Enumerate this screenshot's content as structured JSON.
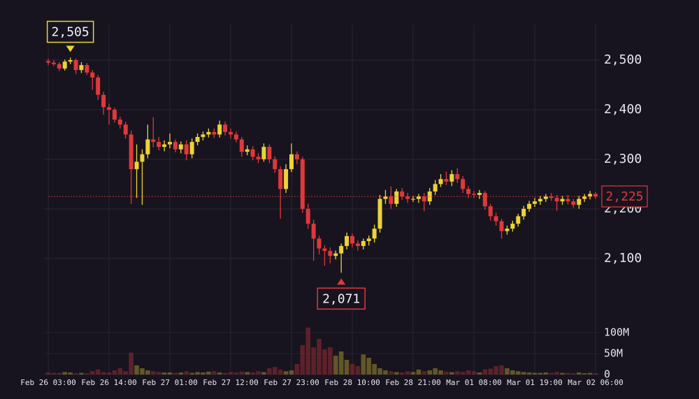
{
  "chart_data": {
    "type": "candlestick",
    "categories": [
      "Feb 26 03:00",
      null,
      null,
      null,
      null,
      null,
      null,
      null,
      null,
      null,
      null,
      "Feb 26 14:00",
      null,
      null,
      null,
      null,
      null,
      null,
      null,
      null,
      null,
      null,
      "Feb 27 01:00",
      null,
      null,
      null,
      null,
      null,
      null,
      null,
      null,
      null,
      null,
      "Feb 27 12:00",
      null,
      null,
      null,
      null,
      null,
      null,
      null,
      null,
      null,
      null,
      "Feb 27 23:00",
      null,
      null,
      null,
      null,
      null,
      null,
      null,
      null,
      null,
      null,
      "Feb 28 10:00",
      null,
      null,
      null,
      null,
      null,
      null,
      null,
      null,
      null,
      null,
      "Feb 28 21:00",
      null,
      null,
      null,
      null,
      null,
      null,
      null,
      null,
      null,
      null,
      "Mar 01 08:00",
      null,
      null,
      null,
      null,
      null,
      null,
      null,
      null,
      null,
      null,
      "Mar 01 19:00",
      null,
      null,
      null,
      null,
      null,
      null,
      null,
      null,
      null,
      null,
      "Mar 02 06:00"
    ],
    "open": [
      2498,
      2495,
      2492,
      2483,
      2497,
      2500,
      2480,
      2490,
      2475,
      2465,
      2430,
      2405,
      2400,
      2380,
      2370,
      2350,
      2280,
      2295,
      2310,
      2340,
      2335,
      2325,
      2330,
      2335,
      2320,
      2330,
      2310,
      2335,
      2345,
      2350,
      2355,
      2350,
      2370,
      2355,
      2350,
      2340,
      2315,
      2320,
      2305,
      2300,
      2325,
      2300,
      2280,
      2240,
      2280,
      2310,
      2300,
      2200,
      2170,
      2140,
      2120,
      2115,
      2105,
      2110,
      2125,
      2145,
      2130,
      2125,
      2135,
      2140,
      2160,
      2220,
      2225,
      2210,
      2235,
      2225,
      2220,
      2220,
      2225,
      2215,
      2235,
      2250,
      2260,
      2255,
      2270,
      2260,
      2240,
      2230,
      2228,
      2232,
      2205,
      2185,
      2175,
      2155,
      2160,
      2170,
      2185,
      2200,
      2210,
      2215,
      2220,
      2225,
      2222,
      2215,
      2220,
      2215,
      2208,
      2220,
      2225,
      2230
    ],
    "high": [
      2503,
      2500,
      2496,
      2501,
      2505,
      2503,
      2496,
      2494,
      2480,
      2470,
      2436,
      2412,
      2404,
      2386,
      2376,
      2358,
      2330,
      2320,
      2370,
      2385,
      2345,
      2338,
      2352,
      2340,
      2336,
      2338,
      2342,
      2352,
      2356,
      2362,
      2362,
      2378,
      2376,
      2362,
      2356,
      2345,
      2328,
      2326,
      2312,
      2332,
      2330,
      2306,
      2286,
      2290,
      2332,
      2316,
      2305,
      2210,
      2178,
      2146,
      2126,
      2122,
      2116,
      2130,
      2152,
      2150,
      2136,
      2140,
      2146,
      2168,
      2228,
      2238,
      2245,
      2240,
      2242,
      2232,
      2226,
      2230,
      2232,
      2242,
      2258,
      2270,
      2275,
      2278,
      2282,
      2266,
      2246,
      2236,
      2238,
      2236,
      2210,
      2192,
      2180,
      2166,
      2176,
      2190,
      2206,
      2216,
      2222,
      2226,
      2230,
      2232,
      2228,
      2226,
      2228,
      2220,
      2226,
      2230,
      2236,
      2234
    ],
    "low": [
      2490,
      2488,
      2478,
      2479,
      2492,
      2472,
      2474,
      2470,
      2440,
      2420,
      2390,
      2370,
      2374,
      2362,
      2342,
      2210,
      2222,
      2208,
      2302,
      2324,
      2318,
      2316,
      2322,
      2314,
      2312,
      2298,
      2302,
      2328,
      2338,
      2344,
      2343,
      2344,
      2348,
      2342,
      2334,
      2305,
      2308,
      2298,
      2292,
      2295,
      2292,
      2272,
      2180,
      2232,
      2274,
      2290,
      2192,
      2160,
      2095,
      2108,
      2085,
      2090,
      2098,
      2071,
      2118,
      2122,
      2116,
      2118,
      2126,
      2132,
      2152,
      2210,
      2200,
      2204,
      2218,
      2212,
      2214,
      2212,
      2195,
      2208,
      2228,
      2244,
      2248,
      2246,
      2252,
      2232,
      2222,
      2222,
      2220,
      2198,
      2176,
      2166,
      2140,
      2148,
      2154,
      2164,
      2178,
      2194,
      2204,
      2208,
      2214,
      2216,
      2196,
      2208,
      2209,
      2202,
      2200,
      2214,
      2219,
      2220
    ],
    "close": [
      2495,
      2492,
      2483,
      2497,
      2500,
      2480,
      2490,
      2475,
      2465,
      2430,
      2405,
      2400,
      2380,
      2370,
      2350,
      2280,
      2295,
      2310,
      2340,
      2335,
      2325,
      2330,
      2335,
      2320,
      2330,
      2310,
      2335,
      2345,
      2350,
      2355,
      2350,
      2370,
      2355,
      2350,
      2340,
      2315,
      2320,
      2305,
      2300,
      2325,
      2300,
      2280,
      2240,
      2280,
      2310,
      2300,
      2200,
      2170,
      2140,
      2120,
      2115,
      2105,
      2110,
      2125,
      2145,
      2130,
      2125,
      2135,
      2140,
      2160,
      2220,
      2225,
      2210,
      2235,
      2225,
      2220,
      2220,
      2225,
      2215,
      2235,
      2250,
      2260,
      2255,
      2270,
      2260,
      2240,
      2230,
      2228,
      2232,
      2205,
      2185,
      2175,
      2155,
      2160,
      2170,
      2185,
      2200,
      2210,
      2215,
      2220,
      2225,
      2222,
      2215,
      2220,
      2215,
      2208,
      2220,
      2225,
      2230,
      2225
    ],
    "volume": [
      5,
      4,
      4,
      6,
      5,
      3,
      4,
      3,
      8,
      12,
      6,
      5,
      10,
      15,
      8,
      52,
      22,
      15,
      10,
      8,
      6,
      5,
      5,
      4,
      5,
      8,
      4,
      6,
      5,
      7,
      8,
      5,
      4,
      6,
      5,
      7,
      6,
      5,
      8,
      6,
      15,
      18,
      12,
      8,
      10,
      25,
      70,
      112,
      65,
      85,
      60,
      65,
      45,
      55,
      35,
      25,
      20,
      48,
      40,
      25,
      15,
      10,
      8,
      6,
      5,
      8,
      6,
      12,
      8,
      10,
      15,
      10,
      7,
      6,
      8,
      6,
      10,
      8,
      5,
      12,
      14,
      20,
      22,
      15,
      10,
      8,
      6,
      5,
      4,
      4,
      5,
      4,
      6,
      4,
      4,
      3,
      5,
      3,
      4,
      3
    ],
    "up_color": "#ecd337",
    "down_color": "#e0383b",
    "ylim": [
      2008,
      2572
    ],
    "yticks": [
      {
        "value": 2100,
        "label": "2,100"
      },
      {
        "value": 2200,
        "label": "2,200"
      },
      {
        "value": 2300,
        "label": "2,300"
      },
      {
        "value": 2400,
        "label": "2,400"
      },
      {
        "value": 2500,
        "label": "2,500"
      }
    ],
    "volume_ylim": [
      0,
      120
    ],
    "volume_yticks": [
      {
        "value": 0,
        "label": "0"
      },
      {
        "value": 50,
        "label": "50M"
      },
      {
        "value": 100,
        "label": "100M"
      }
    ],
    "high_label": {
      "value": 2505,
      "label": "2,505"
    },
    "low_label": {
      "value": 2071,
      "label": "2,071"
    },
    "last_price": {
      "value": 2225,
      "label": "2,225"
    },
    "grid": true
  }
}
